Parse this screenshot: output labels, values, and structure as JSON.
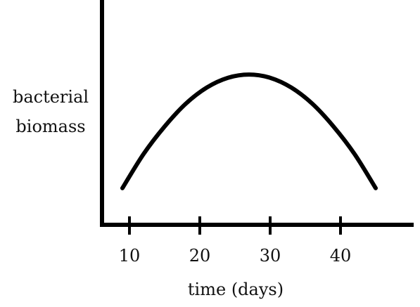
{
  "chart_data": {
    "type": "line",
    "title": "",
    "xlabel": "time (days)",
    "ylabel_lines": [
      "bacterial",
      "biomass"
    ],
    "xlim": [
      6,
      50
    ],
    "ylim": [
      0,
      10
    ],
    "x_ticks": [
      10,
      20,
      30,
      40
    ],
    "x_tick_labels": [
      "10",
      "20",
      "30",
      "40"
    ],
    "y_ticks_shown": false,
    "grid": false,
    "legend": "none",
    "series": [
      {
        "x": [
          9,
          12,
          15,
          18,
          21,
          24,
          27,
          30,
          33,
          36,
          39,
          42,
          45
        ],
        "y": [
          2.0,
          4.1,
          5.8,
          7.2,
          8.2,
          8.8,
          9.0,
          8.8,
          8.2,
          7.2,
          5.8,
          4.1,
          2.0
        ]
      }
    ]
  }
}
